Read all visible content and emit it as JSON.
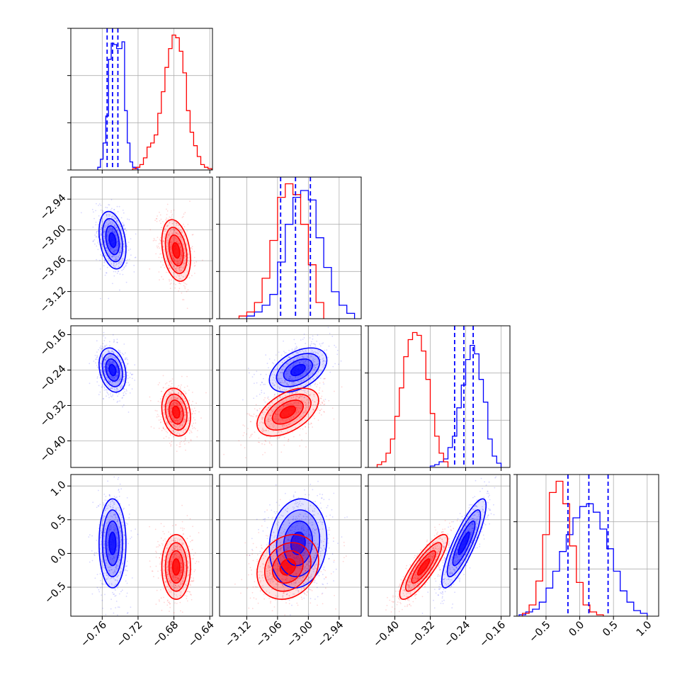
{
  "chart_data": {
    "type": "corner",
    "grid": true,
    "series": [
      {
        "color": "#0000ff"
      },
      {
        "color": "#ff0000"
      }
    ],
    "params": [
      {
        "range": [
          -0.795,
          -0.637
        ],
        "ticks": [
          "-0.76",
          "-0.72",
          "-0.68",
          "-0.64"
        ],
        "tick_values": [
          -0.76,
          -0.72,
          -0.68,
          -0.64
        ]
      },
      {
        "range": [
          -3.173,
          -2.897
        ],
        "ticks": [
          "-3.12",
          "-3.06",
          "-3.00",
          "-2.94"
        ],
        "tick_values": [
          -3.12,
          -3.06,
          -3.0,
          -2.94
        ]
      },
      {
        "range": [
          -0.46,
          -0.14
        ],
        "ticks": [
          "-0.40",
          "-0.32",
          "-0.24",
          "-0.16"
        ],
        "tick_values": [
          -0.4,
          -0.32,
          -0.24,
          -0.16
        ]
      },
      {
        "range": [
          -0.93,
          1.17
        ],
        "ticks": [
          "-0.5",
          "0.0",
          "0.5",
          "1.0"
        ],
        "tick_values": [
          -0.5,
          0.0,
          0.5,
          1.0
        ]
      }
    ],
    "histograms": [
      {
        "param": 0,
        "blue": {
          "edges": [
            -0.765,
            -0.762,
            -0.759,
            -0.756,
            -0.753,
            -0.75,
            -0.747,
            -0.744,
            -0.741,
            -0.738,
            -0.735,
            -0.732,
            -0.729,
            -0.726,
            -0.723,
            -0.72
          ],
          "counts": [
            2,
            8,
            20,
            40,
            82,
            94,
            93,
            90,
            90,
            95,
            44,
            20,
            6,
            2,
            1
          ]
        },
        "red": {
          "edges": [
            -0.726,
            -0.722,
            -0.718,
            -0.714,
            -0.71,
            -0.706,
            -0.702,
            -0.698,
            -0.694,
            -0.69,
            -0.686,
            -0.682,
            -0.678,
            -0.674,
            -0.67,
            -0.666,
            -0.662,
            -0.658,
            -0.654,
            -0.65,
            -0.646,
            -0.642,
            -0.638
          ],
          "counts": [
            1,
            2,
            4,
            9,
            17,
            20,
            26,
            42,
            58,
            76,
            90,
            100,
            98,
            88,
            72,
            44,
            28,
            18,
            10,
            4,
            2,
            1
          ]
        },
        "quantiles": [
          -0.7545,
          -0.7485,
          -0.7425
        ]
      },
      {
        "param": 1,
        "blue": {
          "edges": [
            -3.12,
            -3.105,
            -3.09,
            -3.075,
            -3.06,
            -3.045,
            -3.03,
            -3.015,
            -3.0,
            -2.985,
            -2.97,
            -2.955,
            -2.94,
            -2.925,
            -2.91
          ],
          "counts": [
            2,
            5,
            10,
            18,
            42,
            70,
            90,
            95,
            88,
            60,
            38,
            20,
            10,
            4
          ]
        },
        "red": {
          "edges": [
            -3.135,
            -3.12,
            -3.105,
            -3.09,
            -3.075,
            -3.06,
            -3.045,
            -3.03,
            -3.015,
            -3.0,
            -2.985,
            -2.97
          ],
          "counts": [
            2,
            5,
            12,
            30,
            58,
            90,
            100,
            92,
            70,
            40,
            12
          ]
        },
        "quantiles": [
          -3.054,
          -3.025,
          -2.996
        ]
      },
      {
        "param": 2,
        "blue": {
          "edges": [
            -0.32,
            -0.31,
            -0.3,
            -0.29,
            -0.28,
            -0.27,
            -0.26,
            -0.25,
            -0.24,
            -0.23,
            -0.22,
            -0.21,
            -0.2,
            -0.19,
            -0.18,
            -0.17,
            -0.16
          ],
          "counts": [
            1,
            2,
            4,
            6,
            14,
            22,
            42,
            58,
            76,
            86,
            80,
            62,
            46,
            20,
            8,
            3
          ]
        },
        "red": {
          "edges": [
            -0.44,
            -0.43,
            -0.42,
            -0.41,
            -0.4,
            -0.39,
            -0.38,
            -0.37,
            -0.36,
            -0.35,
            -0.34,
            -0.33,
            -0.32,
            -0.31,
            -0.3,
            -0.29,
            -0.28
          ],
          "counts": [
            2,
            4,
            10,
            20,
            36,
            56,
            78,
            90,
            95,
            93,
            82,
            62,
            38,
            22,
            10,
            4
          ]
        },
        "quantiles": [
          -0.265,
          -0.244,
          -0.223
        ]
      },
      {
        "param": 3,
        "blue": {
          "edges": [
            -0.9,
            -0.8,
            -0.7,
            -0.6,
            -0.5,
            -0.4,
            -0.3,
            -0.2,
            -0.1,
            0.0,
            0.1,
            0.2,
            0.3,
            0.4,
            0.5,
            0.6,
            0.7,
            0.8,
            0.9,
            1.0
          ],
          "counts": [
            1,
            3,
            5,
            10,
            20,
            32,
            46,
            58,
            70,
            78,
            80,
            74,
            62,
            48,
            32,
            18,
            10,
            4,
            2
          ]
        },
        "red": {
          "edges": [
            -0.85,
            -0.75,
            -0.65,
            -0.55,
            -0.45,
            -0.35,
            -0.25,
            -0.15,
            -0.05,
            0.05,
            0.15,
            0.25,
            0.35
          ],
          "counts": [
            2,
            8,
            25,
            58,
            88,
            96,
            80,
            50,
            24,
            8,
            3,
            1
          ]
        },
        "quantiles": [
          -0.175,
          0.135,
          0.42
        ]
      }
    ],
    "pairs": [
      {
        "x": 0,
        "y": 1,
        "blue_mean": [
          -0.7485,
          -3.02
        ],
        "blue_std": [
          0.0075,
          0.028
        ],
        "blue_corr": -0.3,
        "red_mean": [
          -0.6775,
          -3.04
        ],
        "red_std": [
          0.008,
          0.03
        ],
        "red_corr": -0.3
      },
      {
        "x": 0,
        "y": 2,
        "blue_mean": [
          -0.7485,
          -0.24
        ],
        "blue_std": [
          0.0075,
          0.025
        ],
        "blue_corr": -0.25,
        "red_mean": [
          -0.6775,
          -0.335
        ],
        "red_std": [
          0.008,
          0.027
        ],
        "red_corr": -0.2
      },
      {
        "x": 1,
        "y": 2,
        "blue_mean": [
          -3.02,
          -0.24
        ],
        "blue_std": [
          0.028,
          0.025
        ],
        "blue_corr": 0.45,
        "red_mean": [
          -3.04,
          -0.335
        ],
        "red_std": [
          0.03,
          0.027
        ],
        "red_corr": 0.5
      },
      {
        "x": 0,
        "y": 3,
        "blue_mean": [
          -0.7485,
          0.15
        ],
        "blue_std": [
          0.0075,
          0.33
        ],
        "blue_corr": 0.0,
        "red_mean": [
          -0.6775,
          -0.2
        ],
        "red_std": [
          0.008,
          0.24
        ],
        "red_corr": 0.0
      },
      {
        "x": 1,
        "y": 3,
        "blue_mean": [
          -3.02,
          0.15
        ],
        "blue_std": [
          0.028,
          0.33
        ],
        "blue_corr": 0.1,
        "red_mean": [
          -3.04,
          -0.2
        ],
        "red_std": [
          0.03,
          0.24
        ],
        "red_corr": 0.2
      },
      {
        "x": 2,
        "y": 3,
        "blue_mean": [
          -0.244,
          0.15
        ],
        "blue_std": [
          0.025,
          0.33
        ],
        "blue_corr": 0.85,
        "red_mean": [
          -0.335,
          -0.2
        ],
        "red_std": [
          0.027,
          0.24
        ],
        "red_corr": 0.85
      }
    ]
  }
}
